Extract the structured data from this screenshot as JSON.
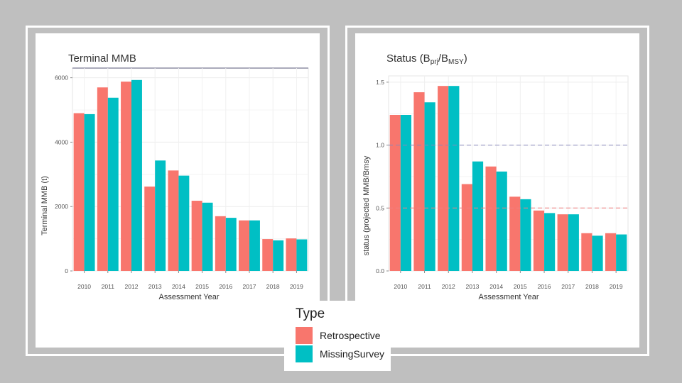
{
  "chart_data": [
    {
      "type": "bar",
      "title": "Terminal MMB",
      "xlabel": "Assessment Year",
      "ylabel": "Terminal MMB (t)",
      "categories": [
        "2010",
        "2011",
        "2012",
        "2013",
        "2014",
        "2015",
        "2016",
        "2017",
        "2018",
        "2019"
      ],
      "series": [
        {
          "name": "Retrospective",
          "values": [
            4900,
            5700,
            5880,
            2620,
            3120,
            2180,
            1700,
            1570,
            990,
            1010
          ]
        },
        {
          "name": "MissingSurvey",
          "values": [
            4870,
            5380,
            5930,
            3430,
            2960,
            2120,
            1650,
            1570,
            950,
            980
          ]
        }
      ],
      "ylim": [
        0,
        6300
      ],
      "yticks": [
        0,
        2000,
        4000,
        6000
      ],
      "ref_lines": []
    },
    {
      "type": "bar",
      "title_main": "Status (B",
      "title_sub1": "prj",
      "title_mid": "/B",
      "title_sub2": "MSY",
      "title_end": ")",
      "xlabel": "Assessment Year",
      "ylabel": "status (projected MMB/Bmsy",
      "categories": [
        "2010",
        "2011",
        "2012",
        "2013",
        "2014",
        "2015",
        "2016",
        "2017",
        "2018",
        "2019"
      ],
      "series": [
        {
          "name": "Retrospective",
          "values": [
            1.24,
            1.42,
            1.47,
            0.69,
            0.83,
            0.59,
            0.48,
            0.45,
            0.3,
            0.3
          ]
        },
        {
          "name": "MissingSurvey",
          "values": [
            1.24,
            1.34,
            1.47,
            0.87,
            0.79,
            0.57,
            0.46,
            0.45,
            0.28,
            0.29
          ]
        }
      ],
      "ylim": [
        0,
        1.55
      ],
      "yticks": [
        "0.0",
        "0.5",
        "1.0",
        "1.5"
      ],
      "ref_lines": [
        {
          "value": 1.0,
          "color": "#8888bb"
        },
        {
          "value": 0.5,
          "color": "#f08080"
        }
      ]
    }
  ],
  "legend": {
    "title": "Type",
    "items": [
      {
        "label": "Retrospective",
        "color": "#F8766D"
      },
      {
        "label": "MissingSurvey",
        "color": "#00BFC4"
      }
    ]
  },
  "colors": {
    "retro": "#F8766D",
    "missing": "#00BFC4"
  }
}
